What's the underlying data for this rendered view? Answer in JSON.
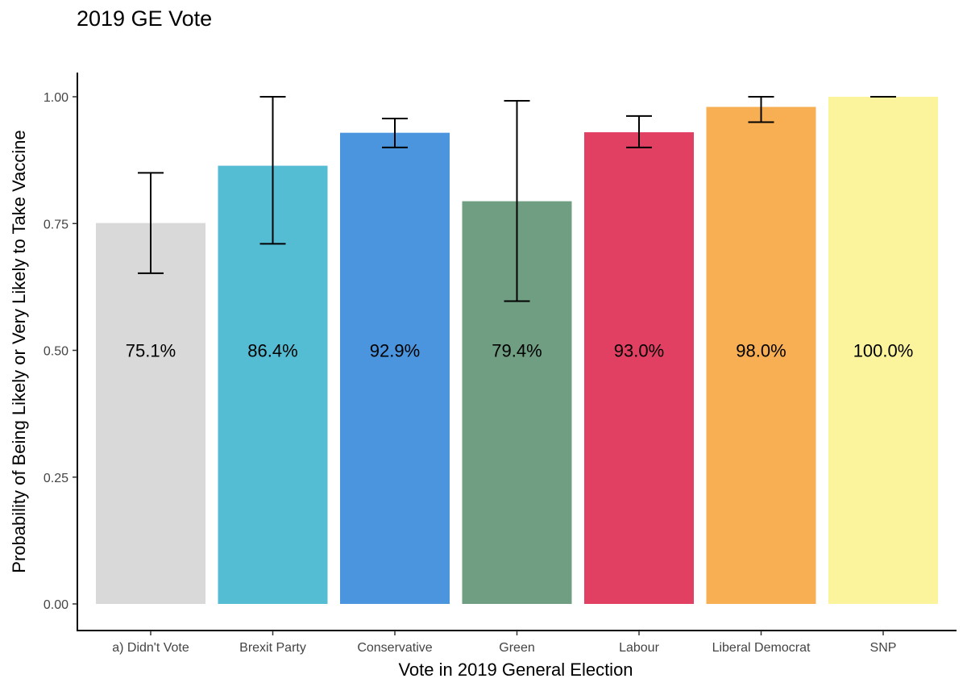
{
  "chart_data": {
    "type": "bar",
    "title": "2019 GE Vote",
    "xlabel": "Vote in 2019 General Election",
    "ylabel": "Probability of Being Likely or Very Likely to Take Vaccine",
    "ylim": [
      0,
      1.0
    ],
    "yticks": [
      0.0,
      0.25,
      0.5,
      0.75,
      1.0
    ],
    "ytick_labels": [
      "0.00",
      "0.25",
      "0.50",
      "0.75",
      "1.00"
    ],
    "categories": [
      "a) Didn't Vote",
      "Brexit Party",
      "Conservative",
      "Green",
      "Labour",
      "Liberal Democrat",
      "SNP"
    ],
    "values": [
      0.751,
      0.864,
      0.929,
      0.794,
      0.93,
      0.98,
      1.0
    ],
    "labels": [
      "75.1%",
      "86.4%",
      "92.9%",
      "79.4%",
      "93.0%",
      "98.0%",
      "100.0%"
    ],
    "label_y": 0.5,
    "error_low": [
      0.652,
      0.71,
      0.9,
      0.597,
      0.9,
      0.95,
      1.0
    ],
    "error_high": [
      0.85,
      1.0,
      0.957,
      0.992,
      0.962,
      1.0,
      1.0
    ],
    "colors": [
      "#d9d9d9",
      "#55bdd3",
      "#4a95de",
      "#6f9e82",
      "#e24062",
      "#f8af54",
      "#fbf49c"
    ],
    "grid": false
  }
}
